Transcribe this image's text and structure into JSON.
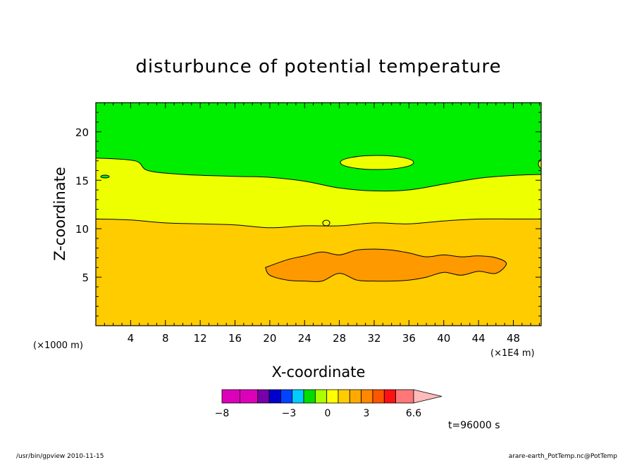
{
  "chart_data": {
    "type": "contour",
    "title": "disturbunce of potential temperature",
    "xlabel": "X-coordinate",
    "ylabel": "Z-coordinate",
    "x_unit_label": "(×1000 m)",
    "x_scale_label": "(×1E4 m)",
    "time_label": "t=96000 s",
    "xlim": [
      0,
      51.2
    ],
    "ylim": [
      0,
      23
    ],
    "x_ticks": [
      4,
      8,
      12,
      16,
      20,
      24,
      28,
      32,
      36,
      40,
      44,
      48
    ],
    "y_ticks": [
      5,
      10,
      15,
      20
    ],
    "regions": [
      {
        "name": "upper layer",
        "color": "#00ee00"
      },
      {
        "name": "middle layer",
        "color": "#eeff00"
      },
      {
        "name": "lower layer",
        "color": "#ffcc00"
      },
      {
        "name": "warm core",
        "color": "#ff9900"
      }
    ],
    "boundaries": [
      {
        "name": "upper boundary",
        "x": [
          0,
          4.5,
          6,
          10,
          16,
          20,
          24,
          28,
          32,
          36,
          40,
          44,
          48,
          51.2
        ],
        "z": [
          17.3,
          17.0,
          16.0,
          15.6,
          15.4,
          15.3,
          14.9,
          14.2,
          13.9,
          14.0,
          14.6,
          15.2,
          15.5,
          15.6
        ]
      },
      {
        "name": "lower boundary",
        "x": [
          0,
          4,
          8,
          12,
          16,
          20,
          24,
          28,
          32,
          36,
          40,
          44,
          48,
          51.2
        ],
        "z": [
          11.0,
          10.9,
          10.6,
          10.5,
          10.4,
          10.1,
          10.3,
          10.3,
          10.6,
          10.5,
          10.8,
          11.0,
          11.0,
          11.0
        ]
      }
    ],
    "colorbar": {
      "colors": [
        "#dd00bb",
        "#dd00bb",
        "#7700aa",
        "#0000cc",
        "#0044ff",
        "#00ccff",
        "#00dd00",
        "#aaff00",
        "#ffff00",
        "#ffcc00",
        "#ffaa00",
        "#ff8800",
        "#ff5500",
        "#ff1111",
        "#ff7777",
        "#ffbbbb"
      ],
      "tick_labels": [
        "−8",
        "−3",
        "0",
        "3",
        "6.6"
      ]
    },
    "footer_left": "/usr/bin/gpview  2010-11-15",
    "footer_right": "arare-earth_PotTemp.nc@PotTemp"
  }
}
